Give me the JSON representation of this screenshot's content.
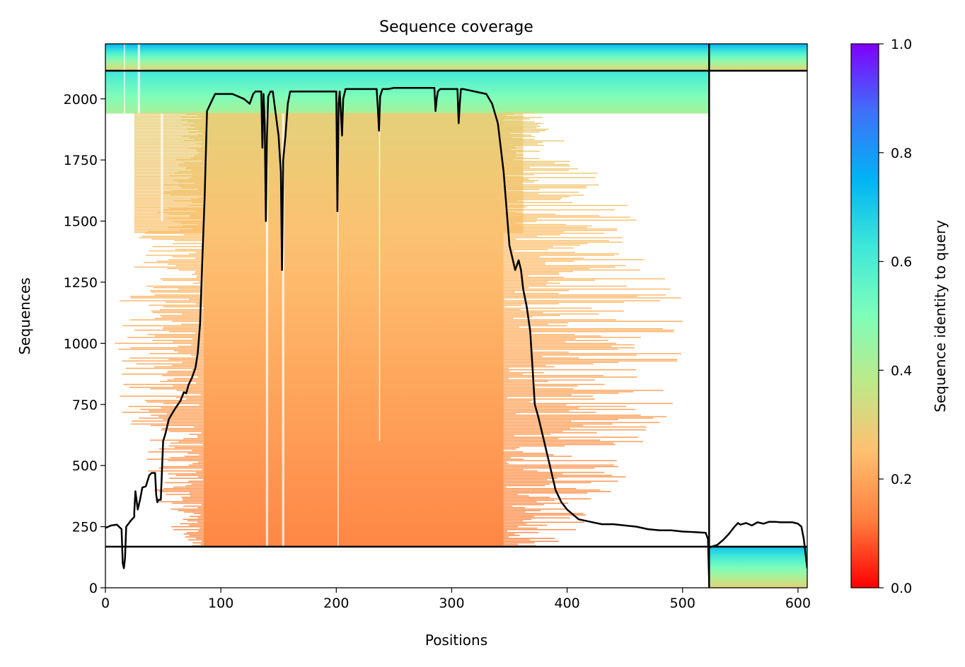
{
  "chart_data": {
    "type": "heatmap",
    "title": "Sequence coverage",
    "xlabel": "Positions",
    "ylabel": "Sequences",
    "xlim": [
      0,
      608
    ],
    "ylim": [
      0,
      2225
    ],
    "x_ticks": [
      0,
      100,
      200,
      300,
      400,
      500,
      600
    ],
    "y_ticks": [
      0,
      250,
      500,
      750,
      1000,
      1250,
      1500,
      1750,
      2000
    ],
    "colorbar": {
      "label": "Sequence identity to query",
      "range": [
        0.0,
        1.0
      ],
      "ticks": [
        0.0,
        0.2,
        0.4,
        0.6,
        0.8,
        1.0
      ],
      "tick_labels": [
        "0.0",
        "0.2",
        "0.4",
        "0.6",
        "0.8",
        "1.0"
      ],
      "colormap": "rainbow",
      "colormap_stops": [
        "#ff0000",
        "#ff7f3f",
        "#fec070",
        "#bfe888",
        "#7ffeb9",
        "#3fe8d9",
        "#00b4f3",
        "#3f71f9",
        "#7f00ff"
      ]
    },
    "boundaries": {
      "chain_break_x": 523,
      "horizontal_lines_y": [
        2115,
        168
      ]
    },
    "blocks": [
      {
        "name": "top-right-group",
        "x_range": [
          523,
          608
        ],
        "y_range": [
          2115,
          2225
        ],
        "identity_range": [
          0.75,
          0.3
        ]
      },
      {
        "name": "top-left-group",
        "x_range": [
          0,
          523
        ],
        "y_range": [
          2115,
          2225
        ],
        "identity_range": [
          0.75,
          0.3
        ]
      },
      {
        "name": "high-identity-group",
        "x_range": [
          0,
          523
        ],
        "y_range": [
          1940,
          2115
        ],
        "identity_range": [
          0.62,
          0.42
        ]
      },
      {
        "name": "main-group",
        "x_range": [
          85,
          345
        ],
        "y_range": [
          168,
          1940
        ],
        "identity_range": [
          0.14,
          0.3
        ]
      },
      {
        "name": "second-chain-group",
        "x_range": [
          523,
          608
        ],
        "y_range": [
          0,
          168
        ],
        "identity_range": [
          0.72,
          0.3
        ]
      }
    ],
    "coverage_line": {
      "series": [
        {
          "x": [
            0,
            5,
            10,
            14,
            15,
            16,
            17,
            18,
            22,
            25,
            25,
            26,
            28,
            30,
            32,
            35,
            38,
            40,
            43,
            44,
            45,
            46,
            48,
            50,
            52,
            55,
            60,
            65,
            68,
            70,
            72,
            75,
            78,
            80,
            82,
            84,
            86,
            88,
            90,
            95,
            100,
            110,
            120,
            125,
            128,
            130,
            135,
            136,
            137,
            138,
            139,
            140,
            141,
            143,
            145,
            150,
            152,
            153,
            154,
            155,
            156,
            158,
            160,
            165,
            170,
            180,
            190,
            200,
            201,
            202,
            203,
            205,
            206,
            208,
            210,
            215,
            220,
            230,
            235,
            236,
            237,
            238,
            240,
            245,
            250,
            260,
            270,
            280,
            285,
            286,
            287,
            288,
            290,
            300,
            305,
            306,
            307,
            308,
            310,
            320,
            330,
            335,
            340,
            345,
            350,
            355,
            358,
            360,
            362,
            365,
            368,
            370,
            372,
            375,
            380,
            385,
            390,
            395,
            400,
            410,
            420,
            430,
            440,
            450,
            460,
            470,
            480,
            490,
            500,
            510,
            520,
            522,
            523
          ],
          "y": [
            245,
            255,
            258,
            240,
            100,
            80,
            120,
            250,
            275,
            290,
            310,
            395,
            320,
            360,
            410,
            415,
            460,
            470,
            470,
            380,
            350,
            360,
            360,
            600,
            630,
            690,
            730,
            765,
            800,
            795,
            830,
            860,
            900,
            960,
            1080,
            1350,
            1600,
            1950,
            1970,
            2020,
            2020,
            2020,
            2000,
            1980,
            2020,
            2030,
            2030,
            1800,
            2020,
            1900,
            1500,
            1850,
            2010,
            2030,
            2030,
            1850,
            1700,
            1300,
            1750,
            1800,
            1850,
            1980,
            2030,
            2030,
            2030,
            2030,
            2030,
            2030,
            1540,
            1980,
            2030,
            1850,
            2000,
            2040,
            2040,
            2040,
            2040,
            2040,
            2040,
            1960,
            1870,
            2010,
            2040,
            2040,
            2045,
            2045,
            2045,
            2045,
            2045,
            1950,
            2000,
            2030,
            2040,
            2040,
            2040,
            1900,
            1980,
            2040,
            2040,
            2030,
            2020,
            1980,
            1900,
            1700,
            1400,
            1300,
            1340,
            1300,
            1220,
            1150,
            1050,
            900,
            750,
            700,
            600,
            500,
            400,
            350,
            320,
            280,
            270,
            260,
            260,
            255,
            250,
            240,
            235,
            235,
            230,
            228,
            225,
            200,
            30
          ]
        },
        {
          "x": [
            523,
            530,
            535,
            540,
            545,
            548,
            550,
            555,
            560,
            565,
            570,
            575,
            580,
            585,
            590,
            595,
            600,
            603,
            605,
            607,
            608
          ],
          "y": [
            165,
            175,
            195,
            220,
            250,
            265,
            258,
            265,
            255,
            268,
            262,
            270,
            270,
            268,
            268,
            268,
            262,
            250,
            200,
            120,
            80
          ]
        }
      ]
    }
  }
}
